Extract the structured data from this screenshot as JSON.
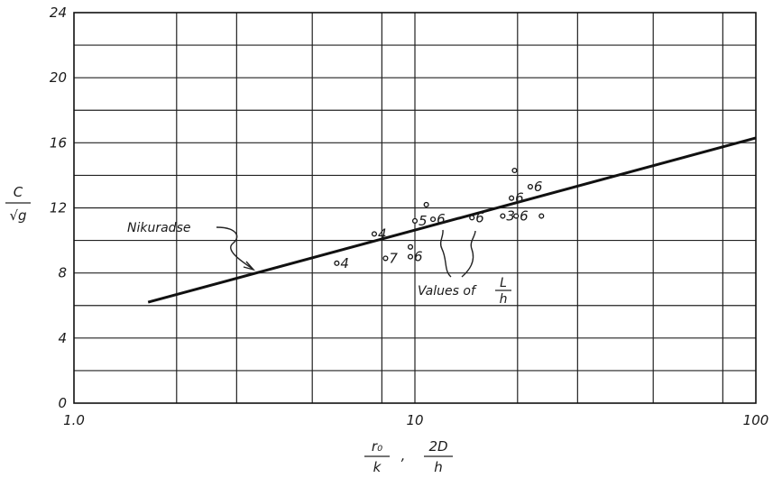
{
  "chart_data": {
    "type": "scatter",
    "x_scale": "log",
    "xlim": [
      1.0,
      100
    ],
    "ylim": [
      0,
      24
    ],
    "grid": true,
    "x_ticks": [
      "1.0",
      "10",
      "100"
    ],
    "y_ticks": [
      "0",
      "4",
      "8",
      "12",
      "16",
      "20",
      "24"
    ],
    "xlabel": {
      "term1_num": "r₀",
      "term1_den": "k",
      "sep": ",",
      "term2_num": "2D",
      "term2_den": "h"
    },
    "ylabel": {
      "num": "C",
      "den": "√g"
    },
    "series": [
      {
        "name": "Nikuradse",
        "kind": "line",
        "points": [
          [
            1.65,
            6.2
          ],
          [
            100,
            16.3
          ]
        ]
      },
      {
        "kind": "points",
        "points": [
          {
            "x": 5.9,
            "y": 8.6,
            "label": "4"
          },
          {
            "x": 7.6,
            "y": 10.4,
            "label": "4"
          },
          {
            "x": 8.2,
            "y": 8.9,
            "label": "7"
          },
          {
            "x": 9.7,
            "y": 9.0,
            "label": "6"
          },
          {
            "x": 9.7,
            "y": 9.6,
            "label": ""
          },
          {
            "x": 10.0,
            "y": 11.2,
            "label": "5"
          },
          {
            "x": 10.8,
            "y": 12.2,
            "label": ""
          },
          {
            "x": 11.3,
            "y": 11.3,
            "label": "6"
          },
          {
            "x": 14.7,
            "y": 11.4,
            "label": "6"
          },
          {
            "x": 18.1,
            "y": 11.5,
            "label": "3"
          },
          {
            "x": 19.2,
            "y": 12.6,
            "label": "6"
          },
          {
            "x": 19.8,
            "y": 11.5,
            "label": "6"
          },
          {
            "x": 19.6,
            "y": 14.3,
            "label": ""
          },
          {
            "x": 21.8,
            "y": 13.3,
            "label": "6"
          },
          {
            "x": 23.5,
            "y": 11.5,
            "label": ""
          }
        ]
      }
    ],
    "annotations": {
      "nikuradse": "Nikuradse",
      "values_of": "Values of",
      "values_frac_num": "L",
      "values_frac_den": "h"
    }
  }
}
